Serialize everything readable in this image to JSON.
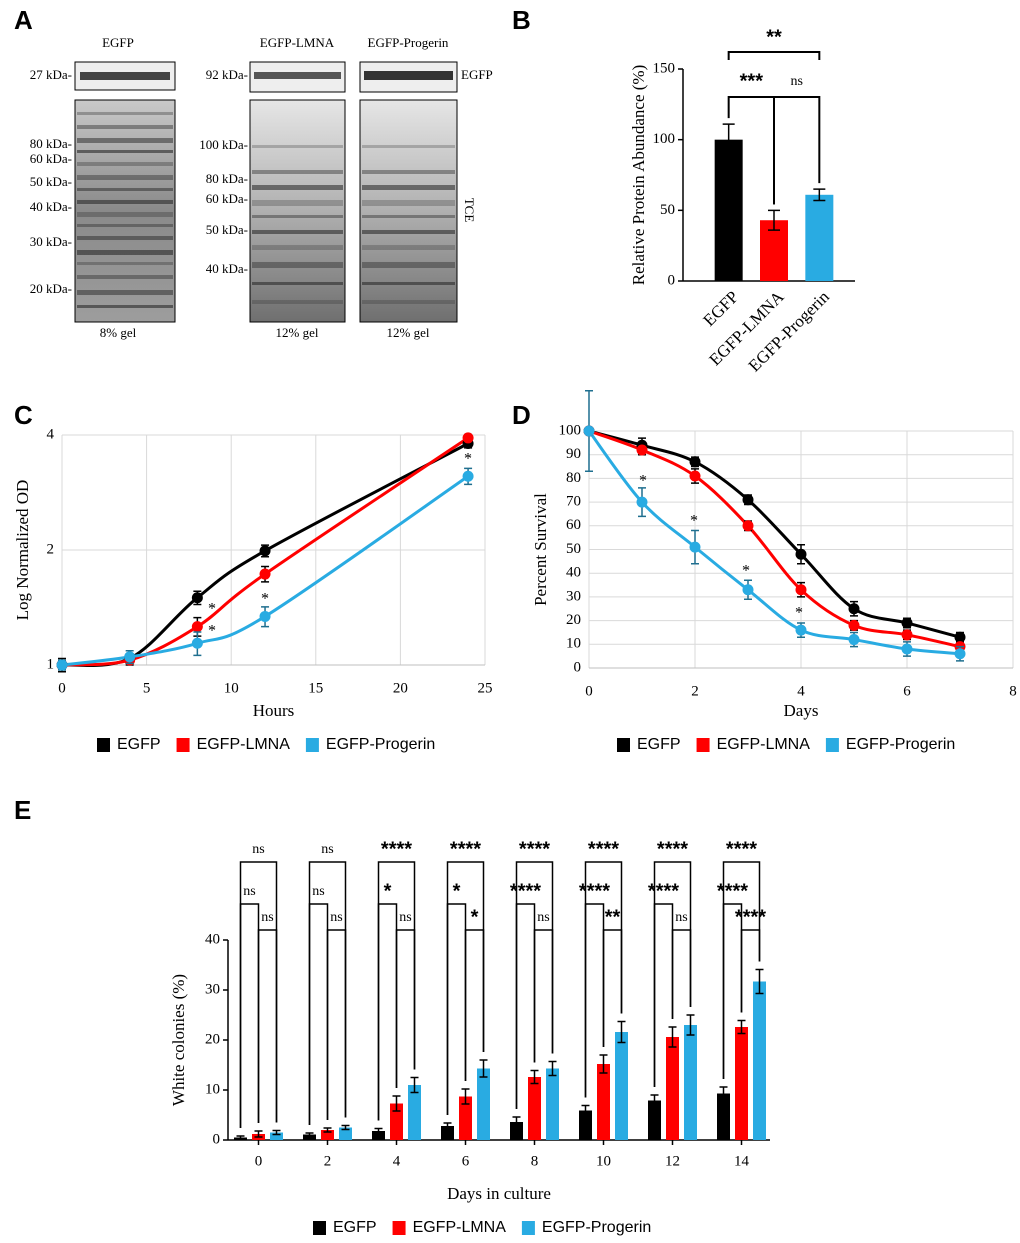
{
  "panel_labels": [
    "A",
    "B",
    "C",
    "D",
    "E"
  ],
  "gel": {
    "lanes": [
      "EGFP",
      "EGFP-LMNA",
      "EGFP-Progerin"
    ],
    "egfp_markers": [
      "27 kDa-",
      "92 kDa-"
    ],
    "egfp_label": "EGFP",
    "tce_label": "TCE",
    "left_markers": [
      "80 kDa-",
      "60 kDa-",
      "50 kDa-",
      "40 kDa-",
      "30 kDa-",
      "20 kDa-"
    ],
    "right_markers": [
      "100 kDa-",
      "80 kDa-",
      "60 kDa-",
      "50 kDa-",
      "40 kDa-"
    ],
    "gel_percent": [
      "8% gel",
      "12% gel",
      "12% gel"
    ]
  },
  "chart_data": [
    {
      "type": "bar",
      "ylabel": "Relative Protein Abundance (%)",
      "categories": [
        "EGFP",
        "EGFP-LMNA",
        "EGFP-Progerin"
      ],
      "values": [
        100,
        43,
        61
      ],
      "errors": [
        11,
        7,
        4
      ],
      "colors": [
        "#000000",
        "#ff0000",
        "#29abe2"
      ],
      "ylim": [
        0,
        150
      ],
      "yticks": [
        0,
        50,
        100,
        150
      ],
      "annotations": [
        "**",
        "***",
        "ns"
      ]
    },
    {
      "type": "line",
      "xlabel": "Hours",
      "ylabel": "Log Normalized OD",
      "x": [
        0,
        4,
        8,
        12,
        24
      ],
      "series": [
        {
          "name": "EGFP",
          "color": "#000000",
          "values": [
            1,
            1.04,
            1.5,
            1.99,
            3.8
          ],
          "errors": [
            0.04,
            0.03,
            0.06,
            0.07,
            0.1
          ]
        },
        {
          "name": "EGFP-LMNA",
          "color": "#ff0000",
          "values": [
            1,
            1.03,
            1.26,
            1.73,
            3.93
          ],
          "errors": [
            0.02,
            0.03,
            0.07,
            0.08,
            0.08
          ]
        },
        {
          "name": "EGFP-Progerin",
          "color": "#29abe2",
          "values": [
            1,
            1.05,
            1.14,
            1.34,
            3.12
          ],
          "errors": [
            0.03,
            0.04,
            0.08,
            0.08,
            0.15
          ]
        }
      ],
      "xlim": [
        0,
        25
      ],
      "xticks": [
        0,
        5,
        10,
        15,
        20,
        25
      ],
      "ylim": [
        1,
        4
      ],
      "yticks": [
        1,
        2,
        4
      ],
      "log_y": true,
      "grid": true,
      "annotations": [
        "*",
        "*",
        "*",
        "*"
      ]
    },
    {
      "type": "line",
      "xlabel": "Days",
      "ylabel": "Percent Survival",
      "x": [
        0,
        1,
        2,
        3,
        4,
        5,
        6,
        7
      ],
      "series": [
        {
          "name": "EGFP",
          "color": "#000000",
          "values": [
            100,
            94,
            87,
            71,
            48,
            25,
            19,
            13
          ],
          "errors": [
            0,
            3,
            2,
            2,
            4,
            3,
            2,
            2
          ]
        },
        {
          "name": "EGFP-LMNA",
          "color": "#ff0000",
          "values": [
            100,
            92,
            81,
            60,
            33,
            18,
            14,
            9
          ],
          "errors": [
            0,
            2,
            3,
            2,
            3,
            2,
            2,
            2
          ]
        },
        {
          "name": "EGFP-Progerin",
          "color": "#29abe2",
          "values": [
            100,
            70,
            51,
            33,
            16,
            12,
            8,
            6
          ],
          "errors": [
            17,
            6,
            7,
            4,
            3,
            3,
            3,
            3
          ]
        }
      ],
      "xlim": [
        0,
        8
      ],
      "xticks": [
        0,
        2,
        4,
        6,
        8
      ],
      "ylim": [
        0,
        100
      ],
      "yticks": [
        0,
        10,
        20,
        30,
        40,
        50,
        60,
        70,
        80,
        90,
        100
      ],
      "grid": true,
      "annotations": [
        "*",
        "*",
        "*",
        "*"
      ]
    },
    {
      "type": "bar",
      "xlabel": "Days in culture",
      "ylabel": "White colonies (%)",
      "categories": [
        "0",
        "2",
        "4",
        "6",
        "8",
        "10",
        "12",
        "14"
      ],
      "series": [
        {
          "name": "EGFP",
          "color": "#000000",
          "values": [
            0.5,
            1.1,
            1.8,
            2.8,
            3.6,
            5.9,
            7.9,
            9.3
          ],
          "errors": [
            0.3,
            0.3,
            0.5,
            0.6,
            1.0,
            1.0,
            1.1,
            1.3
          ]
        },
        {
          "name": "EGFP-LMNA",
          "color": "#ff0000",
          "values": [
            1.2,
            2.0,
            7.3,
            8.7,
            12.6,
            15.2,
            20.6,
            22.6
          ],
          "errors": [
            0.6,
            0.4,
            1.5,
            1.5,
            1.3,
            1.8,
            2.0,
            1.3
          ]
        },
        {
          "name": "EGFP-Progerin",
          "color": "#29abe2",
          "values": [
            1.5,
            2.5,
            11.0,
            14.3,
            14.3,
            21.6,
            23.0,
            31.7
          ],
          "errors": [
            0.4,
            0.4,
            1.5,
            1.7,
            1.4,
            2.1,
            2.0,
            2.4
          ]
        }
      ],
      "ylim": [
        0,
        40
      ],
      "yticks": [
        0,
        10,
        20,
        30,
        40
      ],
      "significance": [
        {
          "all": "ns",
          "egfp_lmna": "ns",
          "lmna_progerin": "ns"
        },
        {
          "all": "ns",
          "egfp_lmna": "ns",
          "lmna_progerin": "ns"
        },
        {
          "all": "****",
          "egfp_lmna": "*",
          "lmna_progerin": "ns"
        },
        {
          "all": "****",
          "egfp_lmna": "*",
          "lmna_progerin": "*"
        },
        {
          "all": "****",
          "egfp_lmna": "****",
          "lmna_progerin": "ns"
        },
        {
          "all": "****",
          "egfp_lmna": "****",
          "lmna_progerin": "**"
        },
        {
          "all": "****",
          "egfp_lmna": "****",
          "lmna_progerin": "ns"
        },
        {
          "all": "****",
          "egfp_lmna": "****",
          "lmna_progerin": "****"
        }
      ]
    }
  ]
}
